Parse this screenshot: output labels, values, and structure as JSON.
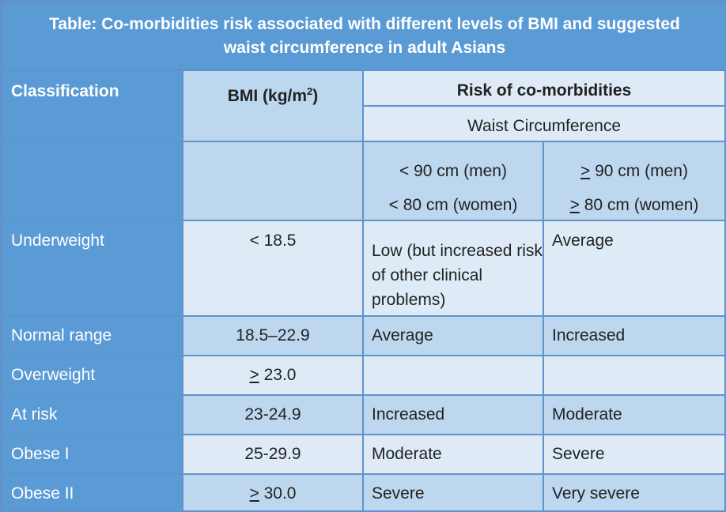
{
  "table": {
    "title_line1": "Table: Co-morbidities risk associated with different levels of BMI and suggested",
    "title_line2": "waist circumference in adult Asians",
    "headers": {
      "classification": "Classification",
      "bmi_label": "BMI (kg/m",
      "bmi_sup": "2",
      "bmi_close": ")",
      "risk": "Risk of co-morbidities",
      "waist": "Waist Circumference",
      "col1_line1": "< 90 cm (men)",
      "col1_line2": "< 80 cm (women)",
      "col2_sym": ">",
      "col2_line1": " 90 cm (men)",
      "col2_line2": " 80 cm (women)"
    },
    "rows": [
      {
        "classification": "Underweight",
        "bmi_sym": "",
        "bmi": "< 18.5",
        "risk_low": "Low (but increased risk of other clinical problems)",
        "risk_high": "Average"
      },
      {
        "classification": "Normal range",
        "bmi_sym": "",
        "bmi": "18.5–22.9",
        "risk_low": "Average",
        "risk_high": "Increased"
      },
      {
        "classification": "Overweight",
        "bmi_sym": ">",
        "bmi": " 23.0",
        "risk_low": "",
        "risk_high": ""
      },
      {
        "classification": "At risk",
        "bmi_sym": "",
        "bmi": "23-24.9",
        "risk_low": "Increased",
        "risk_high": "Moderate"
      },
      {
        "classification": "Obese I",
        "bmi_sym": "",
        "bmi": "25-29.9",
        "risk_low": "Moderate",
        "risk_high": "Severe"
      },
      {
        "classification": "Obese II",
        "bmi_sym": ">",
        "bmi": " 30.0",
        "risk_low": "Severe",
        "risk_high": "Very severe"
      }
    ]
  }
}
